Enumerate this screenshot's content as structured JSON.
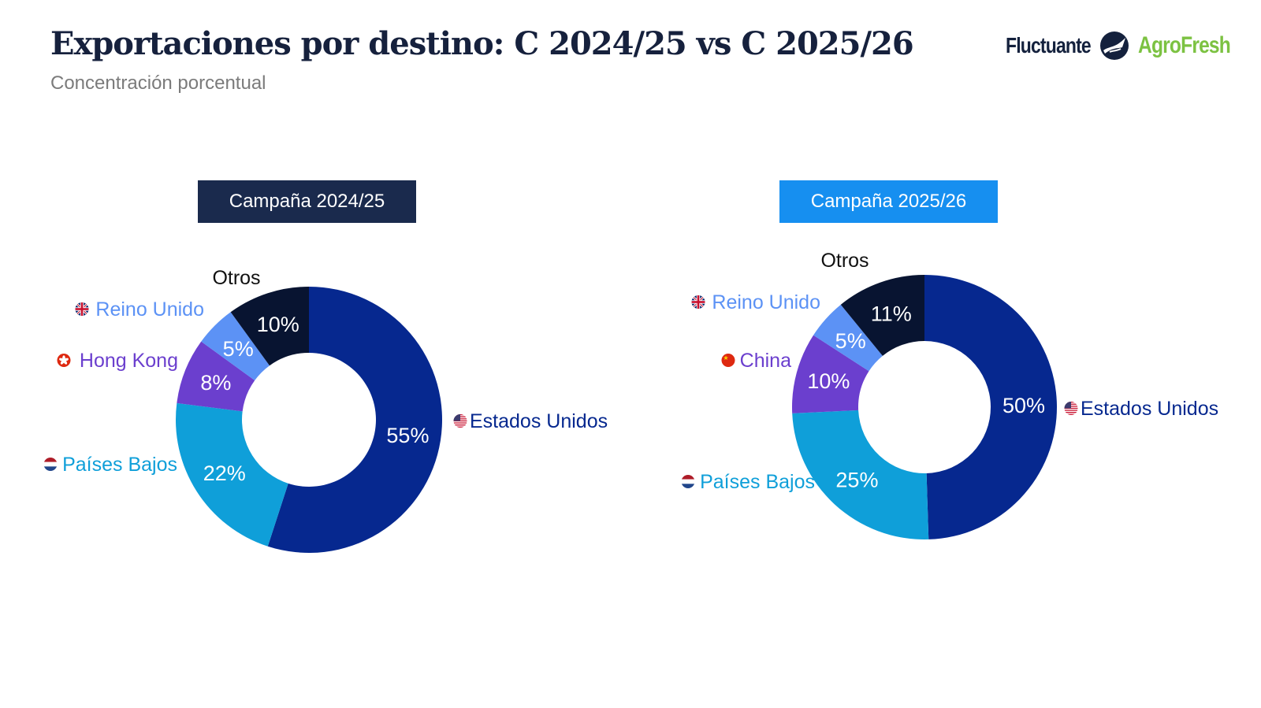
{
  "title": "Exportaciones por destino: C 2024/25 vs C 2025/26",
  "subtitle": "Concentración porcentual",
  "brands": {
    "fluctuante": "Fluctuante",
    "agrofresh": "AgroFresh"
  },
  "colors": {
    "Estados Unidos": "#06288f",
    "Países Bajos": "#0f9fd9",
    "Hong Kong": "#6b3fce",
    "China": "#6b3fce",
    "Reino Unido": "#5c92f5",
    "Otros": "#081431",
    "campaign_2024": "#1a2a4d",
    "campaign_2025": "#168ff0"
  },
  "chart_data": [
    {
      "type": "pie",
      "variant": "donut",
      "title": "Campaña 2024/25",
      "categories": [
        "Estados Unidos",
        "Países Bajos",
        "Hong Kong",
        "Reino Unido",
        "Otros"
      ],
      "values": [
        55,
        22,
        8,
        5,
        10
      ],
      "labels": [
        "55%",
        "22%",
        "8%",
        "5%",
        "10%"
      ],
      "flags": [
        "us-flag-icon",
        "nl-flag-icon",
        "hk-flag-icon",
        "uk-flag-icon",
        null
      ]
    },
    {
      "type": "pie",
      "variant": "donut",
      "title": "Campaña 2025/26",
      "categories": [
        "Estados Unidos",
        "Países Bajos",
        "China",
        "Reino Unido",
        "Otros"
      ],
      "values": [
        50,
        25,
        10,
        5,
        11
      ],
      "labels": [
        "50%",
        "25%",
        "10%",
        "5%",
        "11%"
      ],
      "flags": [
        "us-flag-icon",
        "nl-flag-icon",
        "cn-flag-icon",
        "uk-flag-icon",
        null
      ]
    }
  ]
}
